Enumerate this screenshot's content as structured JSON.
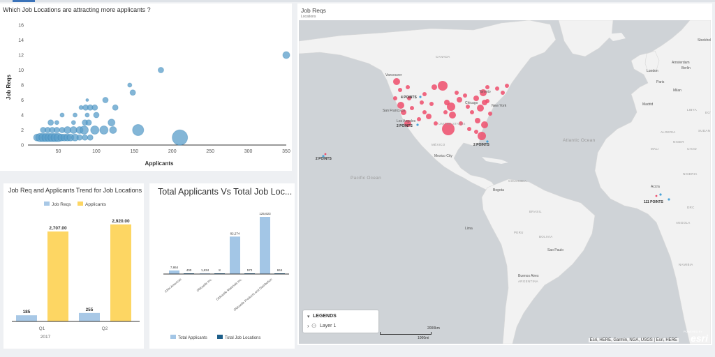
{
  "colors": {
    "scatter_dot": "#5a9ec9",
    "bar_job_reqs": "#a8c8e6",
    "bar_applicants": "#fdd663",
    "bar_total_applicants": "#a3c6e6",
    "bar_total_locations": "#1d5f8a",
    "map_water": "#cfd3d7",
    "map_land": "#f2f2f2",
    "map_point": "#ee4d6c"
  },
  "scatter": {
    "title": "Which Job Locations are attracting more applicants ?",
    "chart_data": {
      "type": "scatter",
      "xlabel": "Applicants",
      "ylabel": "Job Reqs",
      "xlim": [
        10,
        350
      ],
      "ylim": [
        0,
        16
      ],
      "xticks": [
        "50",
        "100",
        "150",
        "200",
        "250",
        "300",
        "350"
      ],
      "yticks": [
        "0",
        "2",
        "4",
        "6",
        "8",
        "10",
        "12",
        "14",
        "16"
      ],
      "grid": false,
      "points": [
        {
          "x": 22,
          "y": 1,
          "r": 5
        },
        {
          "x": 26,
          "y": 1,
          "r": 6
        },
        {
          "x": 30,
          "y": 1,
          "r": 6
        },
        {
          "x": 34,
          "y": 1,
          "r": 6
        },
        {
          "x": 38,
          "y": 1,
          "r": 6
        },
        {
          "x": 42,
          "y": 1,
          "r": 6
        },
        {
          "x": 46,
          "y": 1,
          "r": 6
        },
        {
          "x": 50,
          "y": 1,
          "r": 6
        },
        {
          "x": 54,
          "y": 1,
          "r": 5
        },
        {
          "x": 58,
          "y": 1,
          "r": 5
        },
        {
          "x": 62,
          "y": 1,
          "r": 5
        },
        {
          "x": 66,
          "y": 1,
          "r": 5
        },
        {
          "x": 72,
          "y": 1,
          "r": 5
        },
        {
          "x": 78,
          "y": 1,
          "r": 4
        },
        {
          "x": 85,
          "y": 1,
          "r": 4
        },
        {
          "x": 92,
          "y": 1,
          "r": 4
        },
        {
          "x": 30,
          "y": 2,
          "r": 4
        },
        {
          "x": 36,
          "y": 2,
          "r": 4
        },
        {
          "x": 42,
          "y": 2,
          "r": 4
        },
        {
          "x": 48,
          "y": 2,
          "r": 4
        },
        {
          "x": 55,
          "y": 2,
          "r": 4
        },
        {
          "x": 62,
          "y": 2,
          "r": 5
        },
        {
          "x": 70,
          "y": 2,
          "r": 5
        },
        {
          "x": 78,
          "y": 2,
          "r": 5
        },
        {
          "x": 84,
          "y": 2,
          "r": 6
        },
        {
          "x": 110,
          "y": 2,
          "r": 6
        },
        {
          "x": 122,
          "y": 2,
          "r": 5
        },
        {
          "x": 155,
          "y": 2,
          "r": 8
        },
        {
          "x": 210,
          "y": 1,
          "r": 11
        },
        {
          "x": 98,
          "y": 2,
          "r": 6
        },
        {
          "x": 40,
          "y": 3,
          "r": 4
        },
        {
          "x": 48,
          "y": 3,
          "r": 3
        },
        {
          "x": 70,
          "y": 3,
          "r": 3
        },
        {
          "x": 85,
          "y": 3,
          "r": 4
        },
        {
          "x": 90,
          "y": 3,
          "r": 4
        },
        {
          "x": 120,
          "y": 3,
          "r": 5
        },
        {
          "x": 55,
          "y": 4,
          "r": 3
        },
        {
          "x": 72,
          "y": 4,
          "r": 3
        },
        {
          "x": 88,
          "y": 4,
          "r": 3
        },
        {
          "x": 100,
          "y": 4,
          "r": 4
        },
        {
          "x": 80,
          "y": 5,
          "r": 3
        },
        {
          "x": 86,
          "y": 5,
          "r": 4
        },
        {
          "x": 92,
          "y": 5,
          "r": 4
        },
        {
          "x": 98,
          "y": 5,
          "r": 4
        },
        {
          "x": 125,
          "y": 5,
          "r": 4
        },
        {
          "x": 88,
          "y": 6,
          "r": 2
        },
        {
          "x": 112,
          "y": 6,
          "r": 4
        },
        {
          "x": 148,
          "y": 7,
          "r": 4
        },
        {
          "x": 144,
          "y": 8,
          "r": 3
        },
        {
          "x": 185,
          "y": 10,
          "r": 4
        },
        {
          "x": 350,
          "y": 12,
          "r": 5
        }
      ]
    }
  },
  "trend": {
    "title": "Job Req and Applicants Trend for Job Locations",
    "chart_data": {
      "type": "bar",
      "categories": [
        "Q1",
        "Q2"
      ],
      "group_label": "2017",
      "legend": "top",
      "ylim": [
        0,
        3000
      ],
      "series": [
        {
          "name": "Job Reqs",
          "values": [
            185,
            255
          ],
          "labels": [
            "185",
            "255"
          ]
        },
        {
          "name": "Applicants",
          "values": [
            2707,
            2920
          ],
          "labels": [
            "2,707.00",
            "2,920.00"
          ]
        }
      ]
    }
  },
  "totals": {
    "title": "Total Applicants Vs Total Job Loc...",
    "chart_data": {
      "type": "bar",
      "categories": [
        "CRH Americas",
        "Oldcastle Inc.",
        "Oldcastle Materials Inc.",
        "Oldcastle Products and Distribution"
      ],
      "legend": "bottom",
      "ylim": [
        0,
        125623
      ],
      "series": [
        {
          "name": "Total Applicants",
          "values": [
            7864,
            1634,
            82274,
            125623
          ],
          "labels": [
            "7,864",
            "1,634",
            "82,274",
            "125,623"
          ]
        },
        {
          "name": "Total Job Locations",
          "values": [
            400,
            8,
            572,
            844
          ],
          "labels": [
            "400",
            "8",
            "572",
            "844"
          ]
        }
      ]
    }
  },
  "map": {
    "title": "Job Reqs",
    "subtitle": "Locations",
    "legend_title": "LEGENDS",
    "layer_label": "Layer 1",
    "attribution": "Esri, HERE, Garmin, NGA, USGS | Esri, HERE",
    "esri": "esri",
    "powered": "POWERED BY",
    "scale_top": "2000km",
    "scale_bottom": "1000mi",
    "clusters": [
      "4 POINTS",
      "2 POINTS",
      "2 POINTS",
      "2 POINTS",
      "111 POINTS"
    ],
    "places": [
      "Vancouver",
      "Stockholm",
      "Amsterdam",
      "London",
      "Berlin",
      "Paris",
      "Milan",
      "Madrid",
      "Toronto",
      "Chicago",
      "New York",
      "Los Angeles",
      "San Francisco",
      "Mexico City",
      "Bogota",
      "Lima",
      "Sao Paulo",
      "Buenos Aires",
      "Accra"
    ],
    "regions": [
      "CANADA",
      "UNITED STATES",
      "MÉXICO",
      "Atlantic Ocean",
      "Pacific Ocean",
      "COLOMBIA",
      "PERU",
      "BRASIL",
      "BOLIVIA",
      "ARGENTINA",
      "ALGERIA",
      "MALI",
      "NIGERIA",
      "CHAD",
      "SUDAN",
      "DRC",
      "ANGOLA",
      "NAMIBIA",
      "NIGER",
      "LIBYA",
      "EGYPT"
    ]
  }
}
